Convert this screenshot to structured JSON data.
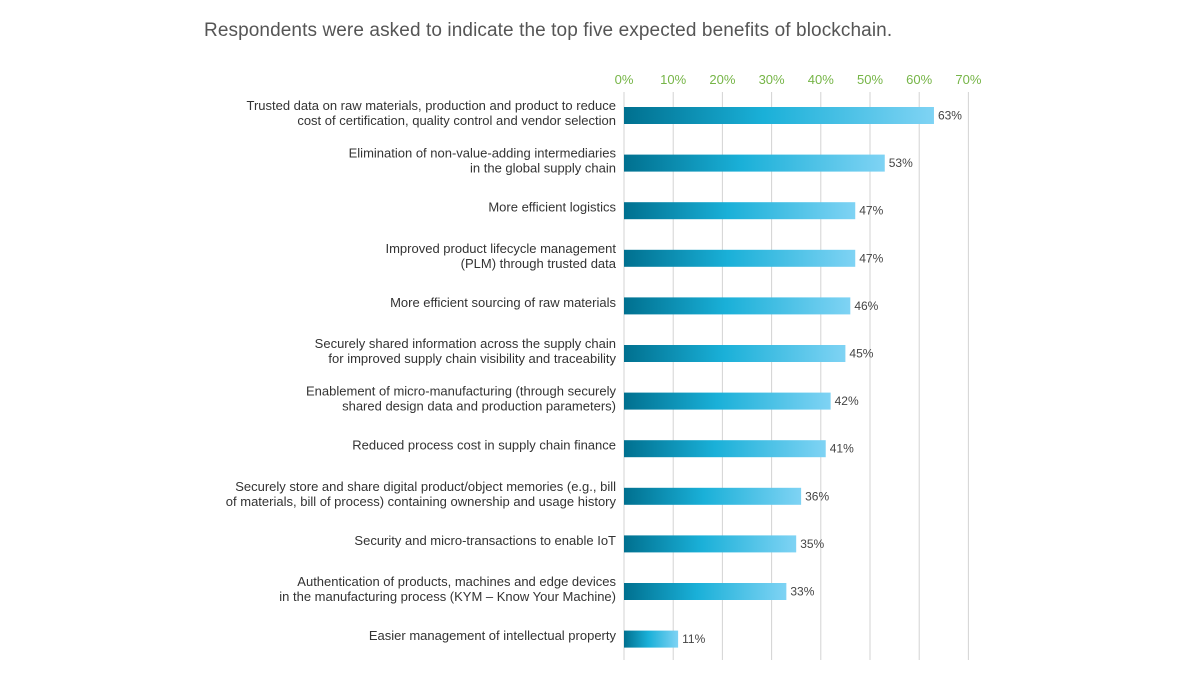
{
  "chart_data": {
    "type": "bar",
    "orientation": "horizontal",
    "title": "Respondents were asked to indicate the top five expected benefits of blockchain.",
    "xlabel": "",
    "ylabel": "",
    "xlim": [
      0,
      70
    ],
    "x_ticks": [
      "0%",
      "10%",
      "20%",
      "30%",
      "40%",
      "50%",
      "60%",
      "70%"
    ],
    "grid": true,
    "categories": [
      [
        "Trusted data on raw materials, production and product to reduce",
        "cost of certification, quality control and vendor selection"
      ],
      [
        "Elimination of non-value-adding intermediaries",
        "in the global supply chain"
      ],
      [
        "More efficient logistics"
      ],
      [
        "Improved product lifecycle management",
        "(PLM) through trusted data"
      ],
      [
        "More efficient sourcing of raw materials"
      ],
      [
        "Securely shared information across the supply chain",
        "for improved supply chain visibility and traceability"
      ],
      [
        "Enablement of micro-manufacturing (through securely",
        "shared design data and production parameters)"
      ],
      [
        "Reduced process cost in supply chain finance"
      ],
      [
        "Securely store and share digital product/object memories (e.g., bill",
        "of materials, bill of process) containing ownership and usage history"
      ],
      [
        "Security and micro-transactions to enable IoT"
      ],
      [
        "Authentication of products, machines and edge devices",
        "in the manufacturing process (KYM – Know Your Machine)"
      ],
      [
        "Easier management of intellectual property"
      ]
    ],
    "values": [
      63,
      53,
      47,
      47,
      46,
      45,
      42,
      41,
      36,
      35,
      33,
      11
    ],
    "value_labels": [
      "63%",
      "53%",
      "47%",
      "47%",
      "46%",
      "45%",
      "42%",
      "41%",
      "36%",
      "35%",
      "33%",
      "11%"
    ],
    "colors": {
      "bar_gradient_start": "#00708f",
      "bar_gradient_mid": "#1ab0d8",
      "bar_gradient_end": "#7fd3f4",
      "tick_label": "#76b547",
      "grid": "#d3d3d3"
    }
  }
}
